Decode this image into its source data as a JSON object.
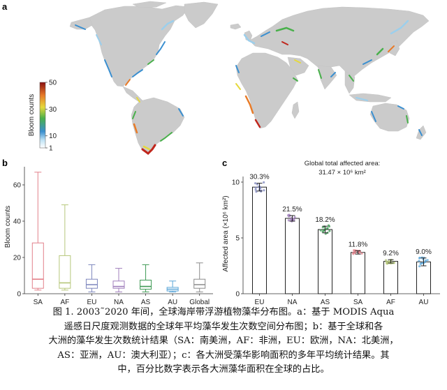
{
  "panels": {
    "a": "a",
    "b": "b",
    "c": "c"
  },
  "map": {
    "colorbar_label": "Bloom counts",
    "colorbar_ticks": [
      1,
      10,
      30,
      50
    ],
    "land_color": "#cbcbcb"
  },
  "box_chart": {
    "type": "box",
    "ylabel": "Bloom counts",
    "ylim": [
      0,
      70
    ],
    "yticks": [
      0,
      20,
      40,
      60
    ],
    "categories": [
      "SA",
      "AF",
      "EU",
      "NA",
      "AS",
      "AU",
      "Global"
    ],
    "colors": [
      "#e2808a",
      "#b6c77a",
      "#7d86bd",
      "#a07fbc",
      "#3f9a55",
      "#5aa6d8",
      "#8c8c8c"
    ],
    "boxes": [
      {
        "min": 2,
        "q1": 3,
        "median": 8,
        "q3": 28,
        "max": 67
      },
      {
        "min": 2,
        "q1": 3,
        "median": 6,
        "q3": 21,
        "max": 49
      },
      {
        "min": 1,
        "q1": 3,
        "median": 5,
        "q3": 8,
        "max": 16
      },
      {
        "min": 1,
        "q1": 3,
        "median": 4,
        "q3": 7,
        "max": 14
      },
      {
        "min": 1,
        "q1": 2.5,
        "median": 4,
        "q3": 7.5,
        "max": 16
      },
      {
        "min": 1,
        "q1": 1.5,
        "median": 2.5,
        "q3": 3.5,
        "max": 7
      },
      {
        "min": 1,
        "q1": 3,
        "median": 5,
        "q3": 8,
        "max": 17
      }
    ]
  },
  "chart_data": {
    "type": "bar",
    "title": "Global total affected area:",
    "subtitle": "31.47 × 10⁶ km²",
    "ylabel": "Affected area (×10⁶ km²)",
    "ylim": [
      0,
      10.5
    ],
    "yticks": [
      0,
      5,
      10
    ],
    "categories": [
      "EU",
      "NA",
      "AS",
      "SA",
      "AF",
      "AU"
    ],
    "values": [
      9.55,
      6.75,
      5.75,
      3.7,
      2.9,
      2.85
    ],
    "errors": [
      0.35,
      0.25,
      0.3,
      0.15,
      0.15,
      0.35
    ],
    "percent_labels": [
      "30.3%",
      "21.5%",
      "18.2%",
      "11.8%",
      "9.2%",
      "9.0%"
    ],
    "point_colors": [
      "#7d86bd",
      "#a07fbc",
      "#3f9a55",
      "#e2808a",
      "#b6c77a",
      "#5aa6d8"
    ]
  },
  "caption": {
    "lines": [
      "图 1. 2003˜2020 年间，全球海岸带浮游植物藻华分布图。a：基于 MODIS Aqua",
      "遥感日尺度观测数据的全球年平均藻华发生次数空间分布图；b：基于全球和各",
      "大洲的藻华发生次数统计结果（SA：南美洲，AF：非洲，EU：欧洲，NA：北美洲，",
      "AS：亚洲，AU：澳大利亚）；c：各大洲受藻华影响面积的多年平均统计结果。其",
      "中，百分比数字表示各大洲藻华面积在全球的占比。"
    ]
  }
}
